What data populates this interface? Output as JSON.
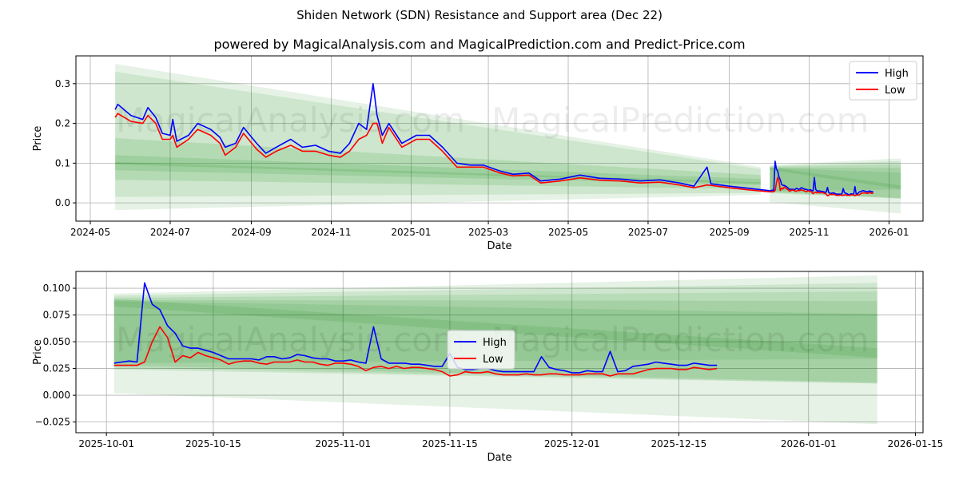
{
  "title": "Shiden Network (SDN) Resistance and Support area (Dec 22)",
  "subtitle": "powered by MagicalAnalysis.com and MagicalPrediction.com and Predict-Price.com",
  "watermarks": [
    "MagicalAnalysis.com",
    "MagicalPrediction.com"
  ],
  "colors": {
    "high": "#0000ff",
    "low": "#ff0000",
    "band": "#008000",
    "grid": "#b0b0b0"
  },
  "chart_data": [
    {
      "type": "line",
      "name": "full-history",
      "xlabel": "Date",
      "ylabel": "Price",
      "xlim": [
        "2024-04-20",
        "2026-01-27"
      ],
      "ylim": [
        -0.046,
        0.37
      ],
      "grid": true,
      "legend": "top-right",
      "xticks": [
        {
          "date": "2024-05-01",
          "label": "2024-05"
        },
        {
          "date": "2024-07-01",
          "label": "2024-07"
        },
        {
          "date": "2024-09-01",
          "label": "2024-09"
        },
        {
          "date": "2024-11-01",
          "label": "2024-11"
        },
        {
          "date": "2025-01-01",
          "label": "2025-01"
        },
        {
          "date": "2025-03-01",
          "label": "2025-03"
        },
        {
          "date": "2025-05-01",
          "label": "2025-05"
        },
        {
          "date": "2025-07-01",
          "label": "2025-07"
        },
        {
          "date": "2025-09-01",
          "label": "2025-09"
        },
        {
          "date": "2025-11-01",
          "label": "2025-11"
        },
        {
          "date": "2026-01-01",
          "label": "2026-01"
        }
      ],
      "yticks": [
        {
          "v": 0.0,
          "label": "0.0"
        },
        {
          "v": 0.1,
          "label": "0.1"
        },
        {
          "v": 0.2,
          "label": "0.2"
        },
        {
          "v": 0.3,
          "label": "0.3"
        }
      ],
      "includes_recent_series": true,
      "bands": [
        {
          "from": "2024-05-20",
          "to": "2025-09-25",
          "upper": [
            0.35,
            0.09
          ],
          "lower": [
            -0.018,
            0.02
          ],
          "opacity": 0.1
        },
        {
          "from": "2024-05-20",
          "to": "2025-09-25",
          "upper": [
            0.33,
            0.085
          ],
          "lower": [
            0.015,
            0.025
          ],
          "opacity": 0.1
        },
        {
          "from": "2024-05-20",
          "to": "2025-09-25",
          "upper": [
            0.163,
            0.07
          ],
          "lower": [
            0.058,
            0.035
          ],
          "opacity": 0.12
        },
        {
          "from": "2024-05-20",
          "to": "2025-09-25",
          "upper": [
            0.12,
            0.06
          ],
          "lower": [
            0.082,
            0.045
          ],
          "opacity": 0.12
        },
        {
          "from": "2024-05-20",
          "to": "2025-09-25",
          "upper": [
            0.103,
            0.052
          ],
          "lower": [
            0.097,
            0.048
          ],
          "opacity": 0.12
        }
      ],
      "series": [
        {
          "name": "High",
          "points": [
            [
              "2024-05-20",
              0.235
            ],
            [
              "2024-05-22",
              0.248
            ],
            [
              "2024-06-01",
              0.22
            ],
            [
              "2024-06-10",
              0.21
            ],
            [
              "2024-06-14",
              0.24
            ],
            [
              "2024-06-20",
              0.215
            ],
            [
              "2024-06-25",
              0.175
            ],
            [
              "2024-07-01",
              0.17
            ],
            [
              "2024-07-03",
              0.21
            ],
            [
              "2024-07-06",
              0.155
            ],
            [
              "2024-07-15",
              0.17
            ],
            [
              "2024-07-22",
              0.2
            ],
            [
              "2024-08-01",
              0.185
            ],
            [
              "2024-08-08",
              0.165
            ],
            [
              "2024-08-12",
              0.14
            ],
            [
              "2024-08-20",
              0.15
            ],
            [
              "2024-08-26",
              0.19
            ],
            [
              "2024-09-05",
              0.15
            ],
            [
              "2024-09-12",
              0.125
            ],
            [
              "2024-09-20",
              0.14
            ],
            [
              "2024-10-01",
              0.16
            ],
            [
              "2024-10-10",
              0.14
            ],
            [
              "2024-10-20",
              0.145
            ],
            [
              "2024-10-30",
              0.13
            ],
            [
              "2024-11-08",
              0.125
            ],
            [
              "2024-11-15",
              0.15
            ],
            [
              "2024-11-22",
              0.2
            ],
            [
              "2024-11-28",
              0.185
            ],
            [
              "2024-12-03",
              0.3
            ],
            [
              "2024-12-06",
              0.22
            ],
            [
              "2024-12-10",
              0.17
            ],
            [
              "2024-12-15",
              0.2
            ],
            [
              "2024-12-25",
              0.15
            ],
            [
              "2025-01-05",
              0.17
            ],
            [
              "2025-01-15",
              0.17
            ],
            [
              "2025-01-25",
              0.14
            ],
            [
              "2025-02-05",
              0.1
            ],
            [
              "2025-02-15",
              0.095
            ],
            [
              "2025-02-25",
              0.095
            ],
            [
              "2025-03-10",
              0.08
            ],
            [
              "2025-03-20",
              0.072
            ],
            [
              "2025-04-01",
              0.075
            ],
            [
              "2025-04-10",
              0.055
            ],
            [
              "2025-04-25",
              0.06
            ],
            [
              "2025-05-10",
              0.07
            ],
            [
              "2025-05-25",
              0.062
            ],
            [
              "2025-06-10",
              0.06
            ],
            [
              "2025-06-25",
              0.055
            ],
            [
              "2025-07-10",
              0.058
            ],
            [
              "2025-07-25",
              0.05
            ],
            [
              "2025-08-05",
              0.042
            ],
            [
              "2025-08-15",
              0.09
            ],
            [
              "2025-08-18",
              0.048
            ],
            [
              "2025-09-01",
              0.042
            ],
            [
              "2025-09-15",
              0.037
            ],
            [
              "2025-10-01",
              0.031
            ]
          ]
        },
        {
          "name": "Low",
          "points": [
            [
              "2024-05-20",
              0.215
            ],
            [
              "2024-05-22",
              0.225
            ],
            [
              "2024-06-01",
              0.205
            ],
            [
              "2024-06-10",
              0.2
            ],
            [
              "2024-06-14",
              0.22
            ],
            [
              "2024-06-20",
              0.2
            ],
            [
              "2024-06-25",
              0.16
            ],
            [
              "2024-07-01",
              0.16
            ],
            [
              "2024-07-03",
              0.17
            ],
            [
              "2024-07-06",
              0.14
            ],
            [
              "2024-07-15",
              0.16
            ],
            [
              "2024-07-22",
              0.185
            ],
            [
              "2024-08-01",
              0.17
            ],
            [
              "2024-08-08",
              0.15
            ],
            [
              "2024-08-12",
              0.12
            ],
            [
              "2024-08-20",
              0.14
            ],
            [
              "2024-08-26",
              0.175
            ],
            [
              "2024-09-05",
              0.135
            ],
            [
              "2024-09-12",
              0.115
            ],
            [
              "2024-09-20",
              0.13
            ],
            [
              "2024-10-01",
              0.145
            ],
            [
              "2024-10-10",
              0.13
            ],
            [
              "2024-10-20",
              0.13
            ],
            [
              "2024-10-30",
              0.12
            ],
            [
              "2024-11-08",
              0.115
            ],
            [
              "2024-11-15",
              0.13
            ],
            [
              "2024-11-22",
              0.16
            ],
            [
              "2024-11-28",
              0.17
            ],
            [
              "2024-12-03",
              0.2
            ],
            [
              "2024-12-06",
              0.2
            ],
            [
              "2024-12-10",
              0.15
            ],
            [
              "2024-12-15",
              0.19
            ],
            [
              "2024-12-25",
              0.14
            ],
            [
              "2025-01-05",
              0.16
            ],
            [
              "2025-01-15",
              0.16
            ],
            [
              "2025-01-25",
              0.13
            ],
            [
              "2025-02-05",
              0.09
            ],
            [
              "2025-02-15",
              0.09
            ],
            [
              "2025-02-25",
              0.09
            ],
            [
              "2025-03-10",
              0.075
            ],
            [
              "2025-03-20",
              0.068
            ],
            [
              "2025-04-01",
              0.07
            ],
            [
              "2025-04-10",
              0.05
            ],
            [
              "2025-04-25",
              0.055
            ],
            [
              "2025-05-10",
              0.063
            ],
            [
              "2025-05-25",
              0.057
            ],
            [
              "2025-06-10",
              0.055
            ],
            [
              "2025-06-25",
              0.05
            ],
            [
              "2025-07-10",
              0.052
            ],
            [
              "2025-07-25",
              0.045
            ],
            [
              "2025-08-05",
              0.038
            ],
            [
              "2025-08-15",
              0.045
            ],
            [
              "2025-08-18",
              0.044
            ],
            [
              "2025-09-01",
              0.038
            ],
            [
              "2025-09-15",
              0.033
            ],
            [
              "2025-10-01",
              0.028
            ]
          ]
        }
      ]
    },
    {
      "type": "line",
      "name": "recent",
      "xlabel": "Date",
      "ylabel": "Price",
      "xlim": [
        "2025-09-27",
        "2026-01-16"
      ],
      "ylim": [
        -0.035,
        0.1157
      ],
      "grid": true,
      "legend": "center",
      "xticks": [
        {
          "date": "2025-10-01",
          "label": "2025-10-01"
        },
        {
          "date": "2025-10-15",
          "label": "2025-10-15"
        },
        {
          "date": "2025-11-01",
          "label": "2025-11-01"
        },
        {
          "date": "2025-11-15",
          "label": "2025-11-15"
        },
        {
          "date": "2025-12-01",
          "label": "2025-12-01"
        },
        {
          "date": "2025-12-15",
          "label": "2025-12-15"
        },
        {
          "date": "2026-01-01",
          "label": "2026-01-01"
        },
        {
          "date": "2026-01-15",
          "label": "2026-01-15"
        }
      ],
      "yticks": [
        {
          "v": -0.025,
          "label": "−0.025"
        },
        {
          "v": 0.0,
          "label": "0.000"
        },
        {
          "v": 0.025,
          "label": "0.025"
        },
        {
          "v": 0.05,
          "label": "0.050"
        },
        {
          "v": 0.075,
          "label": "0.075"
        },
        {
          "v": 0.1,
          "label": "0.100"
        }
      ],
      "bands": [
        {
          "from": "2025-10-02",
          "to": "2026-01-10",
          "upper": [
            0.095,
            0.112
          ],
          "lower": [
            0.002,
            -0.027
          ],
          "opacity": 0.1
        },
        {
          "from": "2025-10-02",
          "to": "2026-01-10",
          "upper": [
            0.093,
            0.105
          ],
          "lower": [
            0.024,
            0.011
          ],
          "opacity": 0.1
        },
        {
          "from": "2025-10-02",
          "to": "2026-01-10",
          "upper": [
            0.091,
            0.097
          ],
          "lower": [
            0.026,
            0.011
          ],
          "opacity": 0.1
        },
        {
          "from": "2025-10-02",
          "to": "2026-01-10",
          "upper": [
            0.089,
            0.088
          ],
          "lower": [
            0.028,
            0.012
          ],
          "opacity": 0.1
        },
        {
          "from": "2025-10-02",
          "to": "2026-01-10",
          "upper": [
            0.088,
            0.076
          ],
          "lower": [
            0.03,
            0.034
          ],
          "opacity": 0.1
        },
        {
          "from": "2025-10-02",
          "to": "2026-01-10",
          "upper": [
            0.09,
            0.044
          ],
          "lower": [
            0.083,
            0.035
          ],
          "opacity": 0.1
        }
      ],
      "start_date": "2025-10-02",
      "series": [
        {
          "name": "High",
          "daily": [
            0.03,
            0.031,
            0.032,
            0.031,
            0.105,
            0.085,
            0.08,
            0.065,
            0.058,
            0.046,
            0.044,
            0.044,
            0.042,
            0.04,
            0.037,
            0.034,
            0.034,
            0.034,
            0.034,
            0.033,
            0.036,
            0.036,
            0.034,
            0.035,
            0.038,
            0.037,
            0.035,
            0.034,
            0.034,
            0.032,
            0.032,
            0.033,
            0.031,
            0.03,
            0.064,
            0.034,
            0.03,
            0.03,
            0.03,
            0.029,
            0.029,
            0.028,
            0.027,
            0.027,
            0.039,
            0.026,
            0.024,
            0.024,
            0.025,
            0.025,
            0.023,
            0.022,
            0.022,
            0.022,
            0.022,
            0.022,
            0.036,
            0.026,
            0.024,
            0.023,
            0.021,
            0.021,
            0.023,
            0.022,
            0.022,
            0.041,
            0.022,
            0.023,
            0.027,
            0.028,
            0.029,
            0.031,
            0.03,
            0.029,
            0.028,
            0.028,
            0.03,
            0.029,
            0.028,
            0.028
          ]
        },
        {
          "name": "Low",
          "daily": [
            0.028,
            0.028,
            0.028,
            0.028,
            0.031,
            0.05,
            0.064,
            0.054,
            0.031,
            0.037,
            0.035,
            0.04,
            0.037,
            0.035,
            0.033,
            0.029,
            0.031,
            0.032,
            0.032,
            0.03,
            0.029,
            0.031,
            0.031,
            0.031,
            0.033,
            0.031,
            0.031,
            0.029,
            0.028,
            0.03,
            0.03,
            0.029,
            0.027,
            0.023,
            0.026,
            0.027,
            0.025,
            0.027,
            0.025,
            0.026,
            0.026,
            0.025,
            0.024,
            0.022,
            0.018,
            0.019,
            0.022,
            0.021,
            0.021,
            0.022,
            0.02,
            0.019,
            0.019,
            0.019,
            0.02,
            0.019,
            0.019,
            0.02,
            0.02,
            0.019,
            0.019,
            0.019,
            0.02,
            0.02,
            0.02,
            0.018,
            0.02,
            0.02,
            0.02,
            0.022,
            0.024,
            0.025,
            0.025,
            0.025,
            0.024,
            0.024,
            0.026,
            0.025,
            0.024,
            0.025
          ]
        }
      ]
    }
  ]
}
